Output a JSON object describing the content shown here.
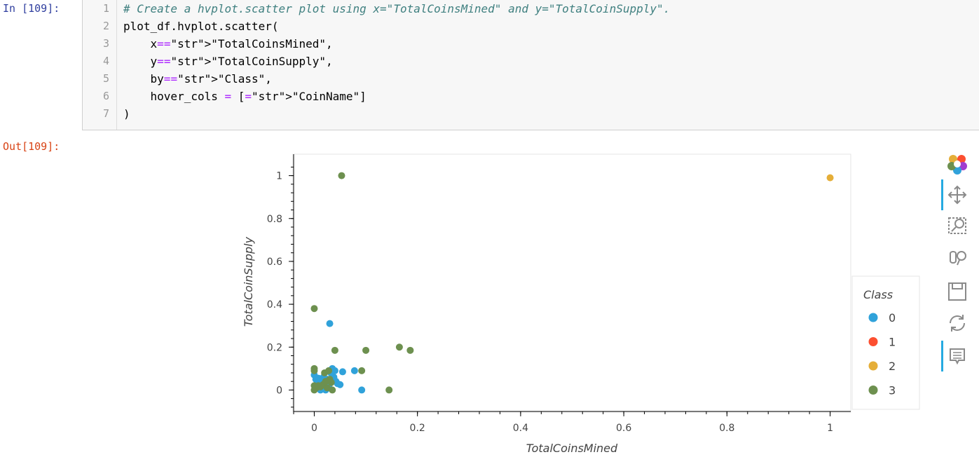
{
  "in_prompt": "In [109]:",
  "out_prompt": "Out[109]:",
  "code_lines": [
    {
      "num": "1",
      "text": "# Create a hvplot.scatter plot using x=\"TotalCoinsMined\" and y=\"TotalCoinSupply\"."
    },
    {
      "num": "2",
      "text": "plot_df.hvplot.scatter("
    },
    {
      "num": "3",
      "text": "    x=\"TotalCoinsMined\","
    },
    {
      "num": "4",
      "text": "    y=\"TotalCoinSupply\","
    },
    {
      "num": "5",
      "text": "    by=\"Class\","
    },
    {
      "num": "6",
      "text": "    hover_cols = [\"CoinName\"]"
    },
    {
      "num": "7",
      "text": ")"
    }
  ],
  "toolbar": {
    "tools": [
      "bokeh-logo-icon",
      "pan-icon",
      "box-zoom-icon",
      "wheel-zoom-icon",
      "save-icon",
      "reset-icon",
      "hover-icon"
    ]
  },
  "chart_data": {
    "type": "scatter",
    "xlabel": "TotalCoinsMined",
    "ylabel": "TotalCoinSupply",
    "xlim": [
      -0.04,
      1.04
    ],
    "ylim": [
      -0.1,
      1.1
    ],
    "xticks": [
      0,
      0.2,
      0.4,
      0.6,
      0.8,
      1
    ],
    "yticks": [
      0,
      0.2,
      0.4,
      0.6,
      0.8,
      1
    ],
    "legend_title": "Class",
    "legend_position": "right",
    "series": [
      {
        "name": "0",
        "color": "#30a2da",
        "points": [
          [
            0.0,
            0.07
          ],
          [
            0.003,
            0.05
          ],
          [
            0.006,
            0.03
          ],
          [
            0.008,
            0.055
          ],
          [
            0.01,
            0.02
          ],
          [
            0.012,
            0.04
          ],
          [
            0.015,
            0.01
          ],
          [
            0.018,
            0.06
          ],
          [
            0.02,
            0.03
          ],
          [
            0.022,
            0.0
          ],
          [
            0.025,
            0.05
          ],
          [
            0.028,
            0.02
          ],
          [
            0.03,
            0.31
          ],
          [
            0.032,
            0.08
          ],
          [
            0.035,
            0.1
          ],
          [
            0.038,
            0.06
          ],
          [
            0.04,
            0.09
          ],
          [
            0.042,
            0.04
          ],
          [
            0.045,
            0.03
          ],
          [
            0.05,
            0.025
          ],
          [
            0.055,
            0.085
          ],
          [
            0.078,
            0.09
          ],
          [
            0.092,
            0.0
          ],
          [
            0.005,
            0.01
          ],
          [
            0.012,
            0.0
          ],
          [
            0.026,
            0.01
          ]
        ]
      },
      {
        "name": "1",
        "color": "#fc4f30",
        "points": []
      },
      {
        "name": "2",
        "color": "#e5ae38",
        "points": [
          [
            1.0,
            0.99
          ]
        ]
      },
      {
        "name": "3",
        "color": "#6d904f",
        "points": [
          [
            0.053,
            1.0
          ],
          [
            0.0,
            0.38
          ],
          [
            0.0,
            0.1
          ],
          [
            0.0,
            0.09
          ],
          [
            0.0,
            0.02
          ],
          [
            0.0,
            0.0
          ],
          [
            0.004,
            0.01
          ],
          [
            0.008,
            0.02
          ],
          [
            0.012,
            0.015
          ],
          [
            0.017,
            0.025
          ],
          [
            0.02,
            0.08
          ],
          [
            0.025,
            0.01
          ],
          [
            0.028,
            0.09
          ],
          [
            0.03,
            0.05
          ],
          [
            0.033,
            0.035
          ],
          [
            0.04,
            0.185
          ],
          [
            0.1,
            0.185
          ],
          [
            0.165,
            0.2
          ],
          [
            0.186,
            0.185
          ],
          [
            0.145,
            0.0
          ],
          [
            0.092,
            0.09
          ],
          [
            0.035,
            0.0
          ],
          [
            0.022,
            0.04
          ]
        ]
      }
    ]
  }
}
